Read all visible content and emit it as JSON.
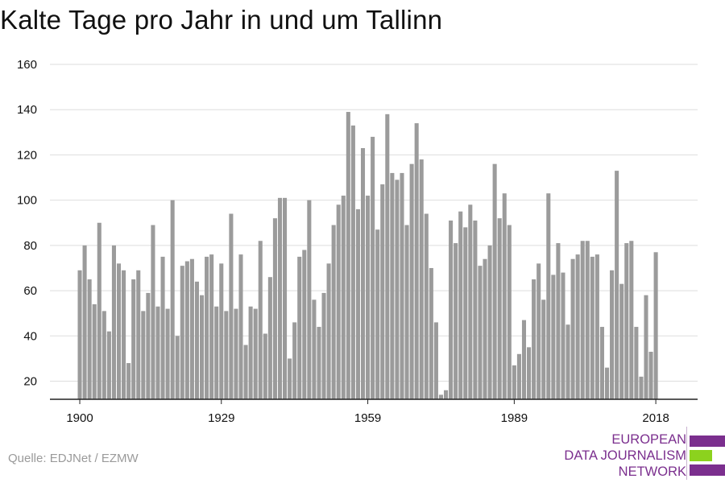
{
  "title": "Kalte Tage pro Jahr in und um Tallinn",
  "source": "Quelle: EDJNet / EZMW",
  "logo": {
    "lines": [
      "EUROPEAN",
      "DATA JOURNALISM",
      "NETWORK"
    ],
    "colors": {
      "purple": "#7b2f8e",
      "green": "#8cd21e"
    }
  },
  "colors": {
    "bar": "#9b9b9b",
    "grid": "#dedede",
    "axis": "#222222",
    "text": "#111111"
  },
  "chart_data": {
    "type": "bar",
    "title": "Kalte Tage pro Jahr in und um Tallinn",
    "xlabel": "",
    "ylabel": "",
    "ylim": [
      12,
      160
    ],
    "yticks": [
      20,
      40,
      60,
      80,
      100,
      120,
      140,
      160
    ],
    "xticks": [
      1900,
      1929,
      1959,
      1989,
      2018
    ],
    "grid": true,
    "x": [
      1900,
      1901,
      1902,
      1903,
      1904,
      1905,
      1906,
      1907,
      1908,
      1909,
      1910,
      1911,
      1912,
      1913,
      1914,
      1915,
      1916,
      1917,
      1918,
      1919,
      1920,
      1921,
      1922,
      1923,
      1924,
      1925,
      1926,
      1927,
      1928,
      1929,
      1930,
      1931,
      1932,
      1933,
      1934,
      1935,
      1936,
      1937,
      1938,
      1939,
      1940,
      1941,
      1942,
      1943,
      1944,
      1945,
      1946,
      1947,
      1948,
      1949,
      1950,
      1951,
      1952,
      1953,
      1954,
      1955,
      1956,
      1957,
      1958,
      1959,
      1960,
      1961,
      1962,
      1963,
      1964,
      1965,
      1966,
      1967,
      1968,
      1969,
      1970,
      1971,
      1972,
      1973,
      1974,
      1975,
      1976,
      1977,
      1978,
      1979,
      1980,
      1981,
      1982,
      1983,
      1984,
      1985,
      1986,
      1987,
      1988,
      1989,
      1990,
      1991,
      1992,
      1993,
      1994,
      1995,
      1996,
      1997,
      1998,
      1999,
      2000,
      2001,
      2002,
      2003,
      2004,
      2005,
      2006,
      2007,
      2008,
      2009,
      2010,
      2011,
      2012,
      2013,
      2014,
      2015,
      2016,
      2017,
      2018
    ],
    "values": [
      69,
      80,
      65,
      54,
      90,
      51,
      42,
      80,
      72,
      69,
      28,
      65,
      69,
      51,
      59,
      89,
      53,
      75,
      52,
      100,
      40,
      71,
      73,
      74,
      64,
      58,
      75,
      76,
      53,
      72,
      51,
      94,
      52,
      76,
      36,
      53,
      52,
      82,
      41,
      66,
      92,
      101,
      101,
      30,
      46,
      75,
      78,
      100,
      56,
      44,
      59,
      72,
      89,
      98,
      102,
      139,
      133,
      96,
      123,
      102,
      128,
      87,
      107,
      138,
      112,
      109,
      112,
      89,
      116,
      134,
      118,
      94,
      70,
      46,
      14,
      16,
      91,
      81,
      95,
      88,
      98,
      91,
      71,
      74,
      80,
      116,
      92,
      103,
      89,
      27,
      32,
      47,
      35,
      65,
      72,
      56,
      103,
      67,
      81,
      68,
      45,
      74,
      76,
      82,
      82,
      75,
      76,
      44,
      26,
      69,
      113,
      63,
      81,
      82,
      44,
      22,
      58,
      33,
      77
    ]
  }
}
